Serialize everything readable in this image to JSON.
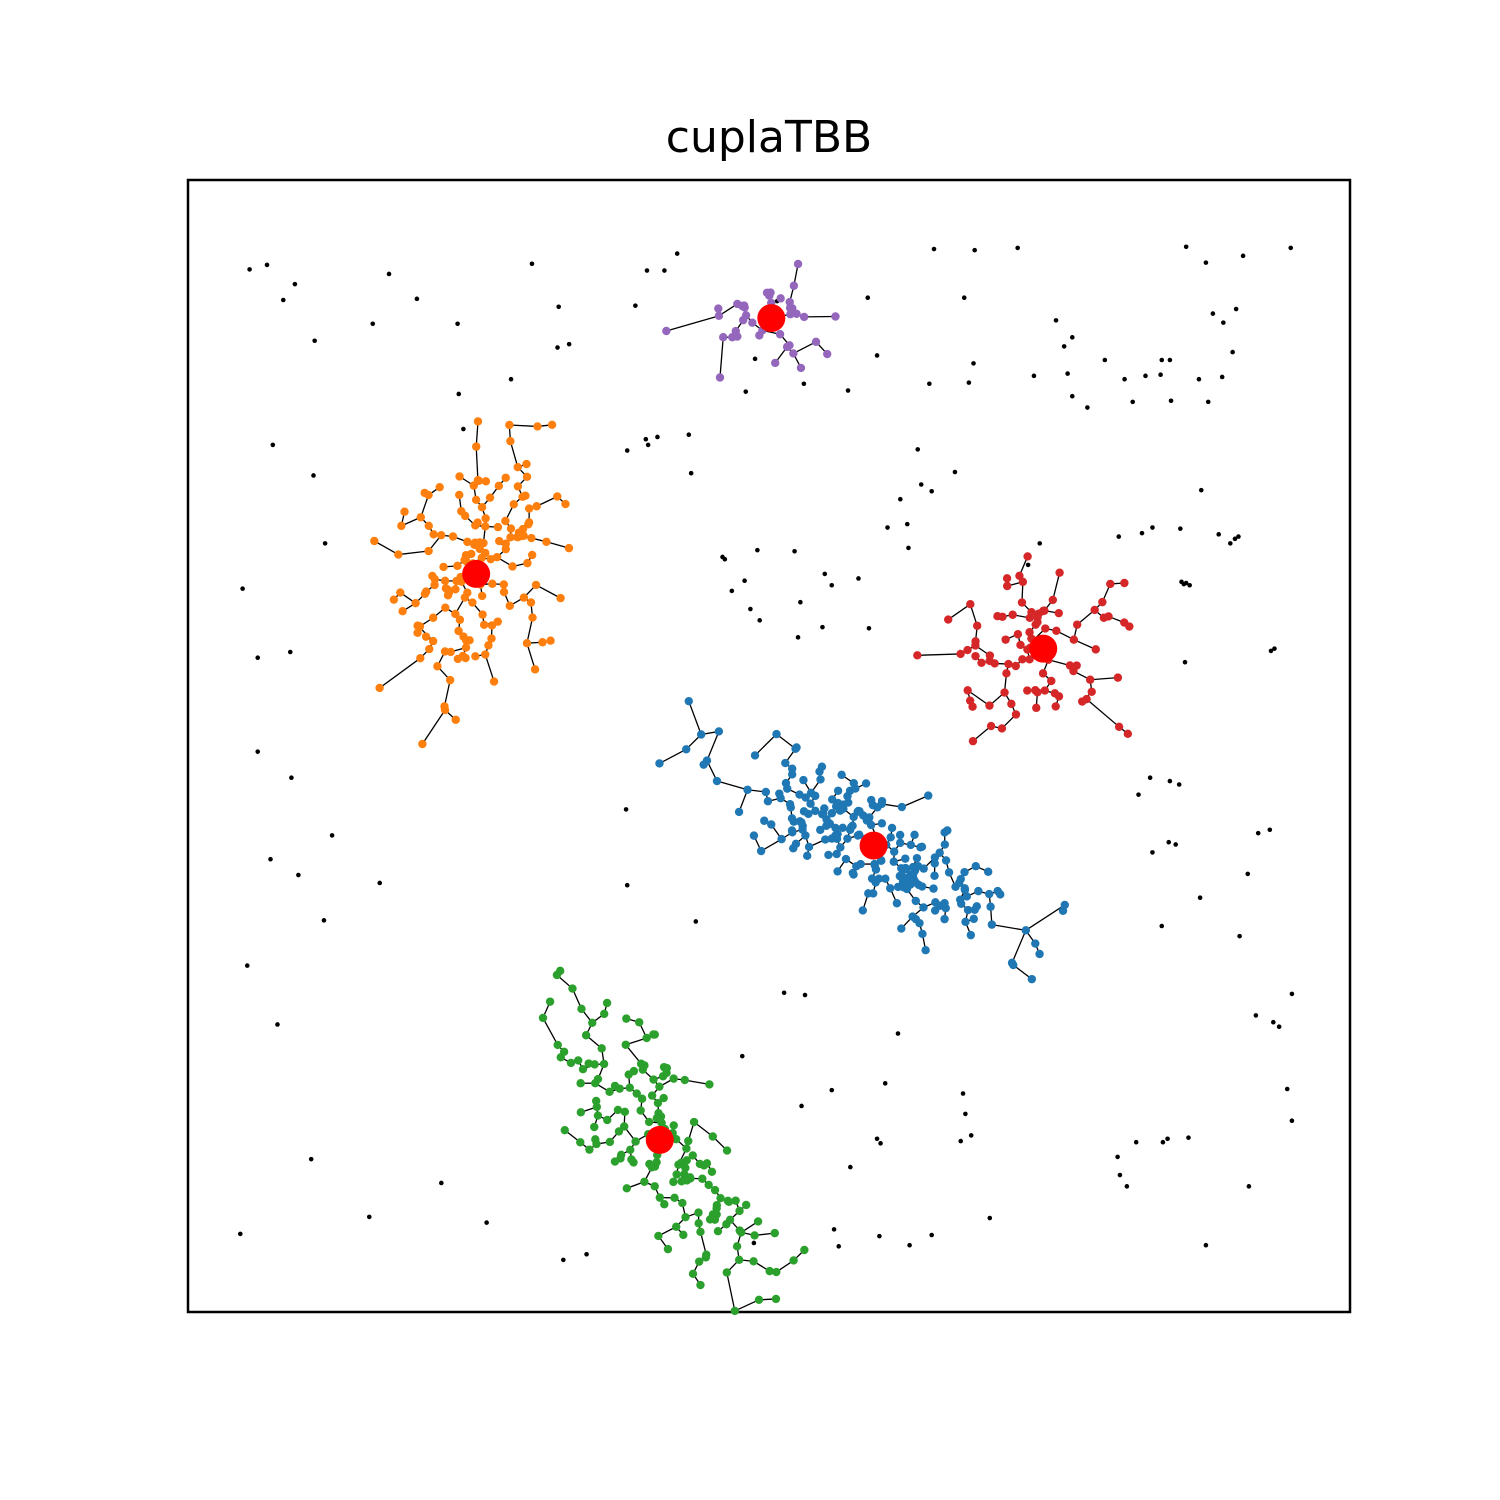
{
  "chart_data": {
    "type": "scatter",
    "title": "cuplaTBB",
    "xlabel": "",
    "ylabel": "",
    "axes_visible": false,
    "grid": false,
    "legend": "none",
    "xlim": [
      0,
      100
    ],
    "ylim": [
      0,
      100
    ],
    "noise_color": "#000000",
    "edge_color": "#000000",
    "center_color": "#ff0000",
    "clusters": [
      {
        "color": "#1f77b4",
        "center": [
          59,
          41.2
        ],
        "spread": [
          7.2,
          2.3
        ],
        "angle_deg": -33,
        "count": 230,
        "seed": 11
      },
      {
        "color": "#ff7f0e",
        "center": [
          24.8,
          65.2
        ],
        "spread": [
          5.8,
          3.0
        ],
        "angle_deg": 70,
        "count": 160,
        "seed": 23
      },
      {
        "color": "#2ca02c",
        "center": [
          40.6,
          15.2
        ],
        "spread": [
          7.2,
          2.6
        ],
        "angle_deg": -55,
        "count": 170,
        "seed": 37
      },
      {
        "color": "#d62728",
        "center": [
          73.6,
          58.6
        ],
        "spread": [
          4.6,
          3.4
        ],
        "angle_deg": 10,
        "count": 90,
        "seed": 41
      },
      {
        "color": "#9467bd",
        "center": [
          50.2,
          87.8
        ],
        "spread": [
          3.4,
          2.2
        ],
        "angle_deg": 0,
        "count": 40,
        "seed": 53
      }
    ],
    "noise": [
      [
        5.3,
        92.1
      ],
      [
        6.8,
        92.5
      ],
      [
        9.2,
        90.8
      ],
      [
        8.2,
        89.4
      ],
      [
        17.3,
        91.7
      ],
      [
        19.7,
        89.5
      ],
      [
        23.2,
        87.3
      ],
      [
        29.6,
        92.6
      ],
      [
        31.9,
        88.8
      ],
      [
        39.5,
        92
      ],
      [
        15.9,
        87.3
      ],
      [
        10.9,
        85.8
      ],
      [
        31.8,
        85.2
      ],
      [
        32.8,
        85.5
      ],
      [
        27.8,
        82.4
      ],
      [
        23.3,
        81.1
      ],
      [
        23.7,
        78
      ],
      [
        39.4,
        77.1
      ],
      [
        40.4,
        77.3
      ],
      [
        37.8,
        76.1
      ],
      [
        7.3,
        76.6
      ],
      [
        10.8,
        73.9
      ],
      [
        11.8,
        67.9
      ],
      [
        4.7,
        63.9
      ],
      [
        6.0,
        57.8
      ],
      [
        8.8,
        58.3
      ],
      [
        6.0,
        49.5
      ],
      [
        8.9,
        47.2
      ],
      [
        12.4,
        42.1
      ],
      [
        7.1,
        40
      ],
      [
        9.5,
        38.6
      ],
      [
        16.5,
        37.9
      ],
      [
        11.7,
        34.6
      ],
      [
        5.1,
        30.6
      ],
      [
        7.7,
        25.4
      ],
      [
        10.6,
        13.5
      ],
      [
        21.8,
        11.4
      ],
      [
        15.6,
        8.4
      ],
      [
        4.5,
        6.9
      ],
      [
        25.7,
        7.9
      ],
      [
        32.3,
        4.6
      ],
      [
        34.3,
        5.1
      ],
      [
        48.7,
        6.1
      ],
      [
        55.6,
        7.3
      ],
      [
        56.0,
        5.8
      ],
      [
        59.5,
        6.7
      ],
      [
        62.1,
        5.9
      ],
      [
        64.0,
        6.8
      ],
      [
        69.0,
        8.3
      ],
      [
        57.0,
        12.8
      ],
      [
        59.6,
        14.9
      ],
      [
        59.3,
        15.3
      ],
      [
        66.5,
        15.1
      ],
      [
        67.4,
        15.6
      ],
      [
        66.9,
        17.5
      ],
      [
        66.7,
        19.3
      ],
      [
        60.0,
        20.2
      ],
      [
        52.8,
        18.2
      ],
      [
        55.4,
        19.6
      ],
      [
        61.1,
        24.6
      ],
      [
        47.7,
        22.6
      ],
      [
        51.3,
        28.2
      ],
      [
        53.1,
        28.0
      ],
      [
        43.7,
        34.5
      ],
      [
        37.8,
        37.7
      ],
      [
        37.7,
        44.4
      ],
      [
        81.6,
        15.0
      ],
      [
        80.0,
        13.7
      ],
      [
        80.2,
        12.1
      ],
      [
        80.8,
        11.1
      ],
      [
        83.9,
        15.0
      ],
      [
        84.3,
        15.3
      ],
      [
        86.1,
        15.4
      ],
      [
        87.6,
        5.9
      ],
      [
        91.3,
        11.1
      ],
      [
        93.4,
        25.6
      ],
      [
        93.9,
        25.2
      ],
      [
        95.0,
        28.1
      ],
      [
        94.6,
        19.7
      ],
      [
        95.0,
        16.9
      ],
      [
        91.9,
        26.2
      ],
      [
        90.5,
        33.2
      ],
      [
        83.8,
        34.1
      ],
      [
        87.1,
        36.6
      ],
      [
        83.0,
        40.6
      ],
      [
        84.4,
        41.5
      ],
      [
        85.0,
        41.3
      ],
      [
        84.5,
        46.9
      ],
      [
        85.3,
        46.6
      ],
      [
        82.8,
        47.2
      ],
      [
        81.8,
        45.7
      ],
      [
        91.2,
        38.7
      ],
      [
        92.1,
        42.3
      ],
      [
        93.1,
        42.6
      ],
      [
        85.8,
        57.4
      ],
      [
        93.2,
        58.4
      ],
      [
        93.5,
        58.6
      ],
      [
        85.5,
        64.5
      ],
      [
        85.9,
        64.4
      ],
      [
        86.2,
        64.2
      ],
      [
        85.7,
        64.3
      ],
      [
        88.7,
        68.7
      ],
      [
        89.7,
        67.9
      ],
      [
        90.1,
        68.3
      ],
      [
        90.4,
        68.5
      ],
      [
        80.1,
        68.5
      ],
      [
        82.1,
        68.8
      ],
      [
        83.0,
        69.3
      ],
      [
        85.4,
        69.2
      ],
      [
        87.2,
        72.6
      ],
      [
        62.8,
        76.2
      ],
      [
        64.0,
        72.5
      ],
      [
        66.0,
        74.2
      ],
      [
        73.3,
        67.9
      ],
      [
        72.3,
        66.0
      ],
      [
        60.2,
        69.3
      ],
      [
        61.9,
        69.6
      ],
      [
        63.1,
        73.1
      ],
      [
        61.3,
        71.8
      ],
      [
        54.6,
        60.5
      ],
      [
        58.6,
        60.4
      ],
      [
        62.0,
        67.5
      ],
      [
        57.7,
        64.8
      ],
      [
        52.2,
        67.2
      ],
      [
        49.0,
        67.3
      ],
      [
        47.9,
        64.6
      ],
      [
        46.2,
        66.5
      ],
      [
        46.8,
        63.7
      ],
      [
        46.0,
        66.7
      ],
      [
        48.4,
        62.1
      ],
      [
        49.2,
        61.1
      ],
      [
        52.5,
        59.6
      ],
      [
        55.4,
        64.2
      ],
      [
        54.8,
        65.2
      ],
      [
        52.7,
        62.7
      ],
      [
        43.3,
        74.1
      ],
      [
        43.1,
        77.5
      ],
      [
        39.6,
        76.6
      ],
      [
        48.0,
        81.3
      ],
      [
        48.8,
        84.2
      ],
      [
        53.0,
        82.0
      ],
      [
        56.8,
        81.4
      ],
      [
        59.3,
        84.5
      ],
      [
        63.8,
        82.0
      ],
      [
        67.2,
        82.1
      ],
      [
        67.6,
        83.8
      ],
      [
        72.8,
        82.7
      ],
      [
        75.7,
        82.9
      ],
      [
        76.1,
        80.9
      ],
      [
        77.4,
        79.9
      ],
      [
        78.9,
        84.1
      ],
      [
        80.6,
        82.4
      ],
      [
        84.6,
        80.5
      ],
      [
        83.7,
        82.8
      ],
      [
        84.5,
        84.1
      ],
      [
        87.8,
        80.4
      ],
      [
        87.0,
        82.4
      ],
      [
        89.0,
        82.6
      ],
      [
        89.9,
        84.8
      ],
      [
        81.3,
        80.4
      ],
      [
        82.4,
        82.7
      ],
      [
        83.8,
        84.1
      ],
      [
        75.4,
        85.3
      ],
      [
        74.7,
        87.6
      ],
      [
        76.1,
        86.1
      ],
      [
        89.1,
        87.4
      ],
      [
        88.2,
        88.2
      ],
      [
        90.2,
        88.6
      ],
      [
        90.8,
        93.3
      ],
      [
        94.9,
        94.0
      ],
      [
        87.6,
        92.7
      ],
      [
        85.9,
        94.1
      ],
      [
        71.4,
        94.0
      ],
      [
        67.7,
        93.8
      ],
      [
        64.2,
        93.9
      ],
      [
        66.8,
        89.6
      ],
      [
        58.5,
        89.6
      ],
      [
        50.7,
        89.3
      ],
      [
        41.0,
        92.0
      ],
      [
        42.1,
        93.5
      ],
      [
        38.5,
        88.9
      ]
    ]
  }
}
